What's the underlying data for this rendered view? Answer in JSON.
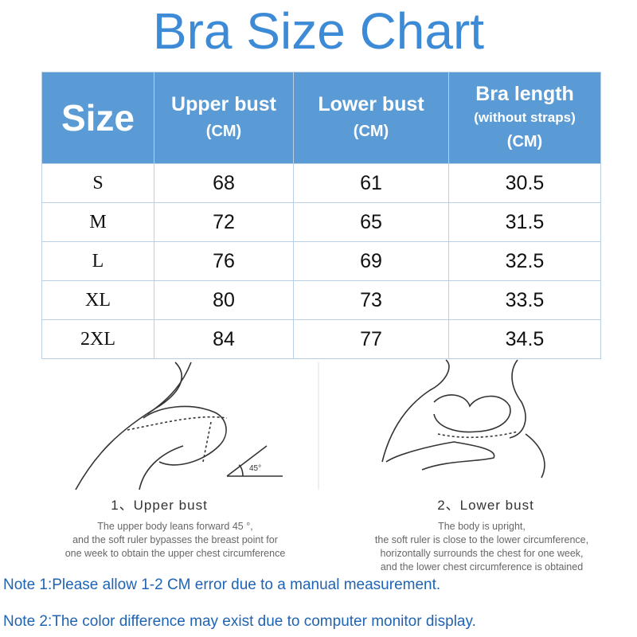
{
  "title": "Bra Size Chart",
  "table": {
    "header": [
      [
        "Size"
      ],
      [
        "Upper bust",
        "(CM)"
      ],
      [
        "Lower bust",
        "(CM)"
      ],
      [
        "Bra length",
        "(without straps)",
        "(CM)"
      ]
    ],
    "rows": [
      [
        "S",
        68,
        61,
        30.5
      ],
      [
        "M",
        72,
        65,
        31.5
      ],
      [
        "L",
        76,
        69,
        32.5
      ],
      [
        "XL",
        80,
        73,
        33.5
      ],
      [
        "2XL",
        84,
        77,
        34.5
      ]
    ]
  },
  "illustrations": [
    {
      "angle": "45°",
      "caption": "1、Upper bust",
      "description": [
        "The upper body leans forward 45 °,",
        "and the soft ruler bypasses the breast point for",
        "one week to obtain the upper chest circumference"
      ]
    },
    {
      "caption": "2、Lower bust",
      "description": [
        "The body is upright,",
        "the soft ruler is close to the lower circumference,",
        "horizontally surrounds the chest for one week,",
        "and the lower chest circumference is obtained"
      ]
    }
  ],
  "notes": [
    "Note 1:Please allow 1-2 CM error due to a manual measurement.",
    "Note 2:The color difference may exist due to computer monitor display."
  ]
}
